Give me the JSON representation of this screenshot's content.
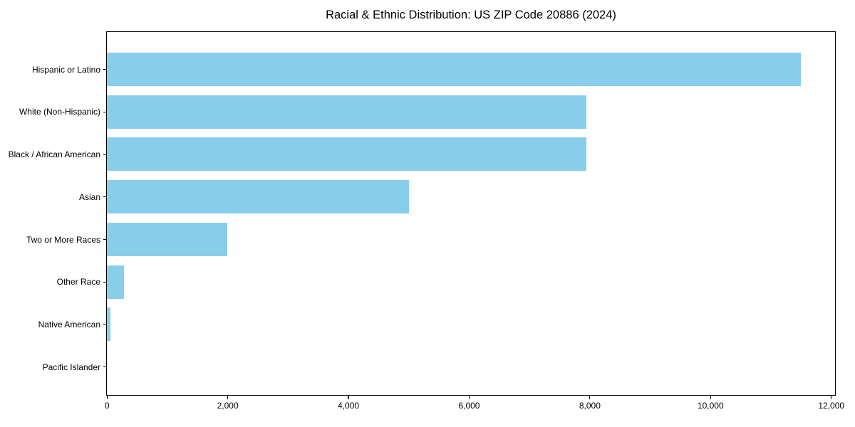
{
  "chart_data": {
    "type": "bar",
    "orientation": "horizontal",
    "title": "Racial & Ethnic Distribution: US ZIP Code 20886 (2024)",
    "categories": [
      "Hispanic or Latino",
      "White (Non-Hispanic)",
      "Black / African American",
      "Asian",
      "Two or More Races",
      "Other Race",
      "Native American",
      "Pacific Islander"
    ],
    "values": [
      11500,
      7950,
      7950,
      5000,
      2000,
      280,
      60,
      0
    ],
    "xlabel": "",
    "ylabel": "",
    "xlim": [
      0,
      12060
    ],
    "x_ticks": [
      0,
      2000,
      4000,
      6000,
      8000,
      10000,
      12000
    ],
    "x_tick_labels": [
      "0",
      "2,000",
      "4,000",
      "6,000",
      "8,000",
      "10,000",
      "12,000"
    ],
    "grid": false,
    "legend": null,
    "bar_color": "#87CEEB",
    "axis_color": "#000000",
    "background_color": "#ffffff"
  }
}
